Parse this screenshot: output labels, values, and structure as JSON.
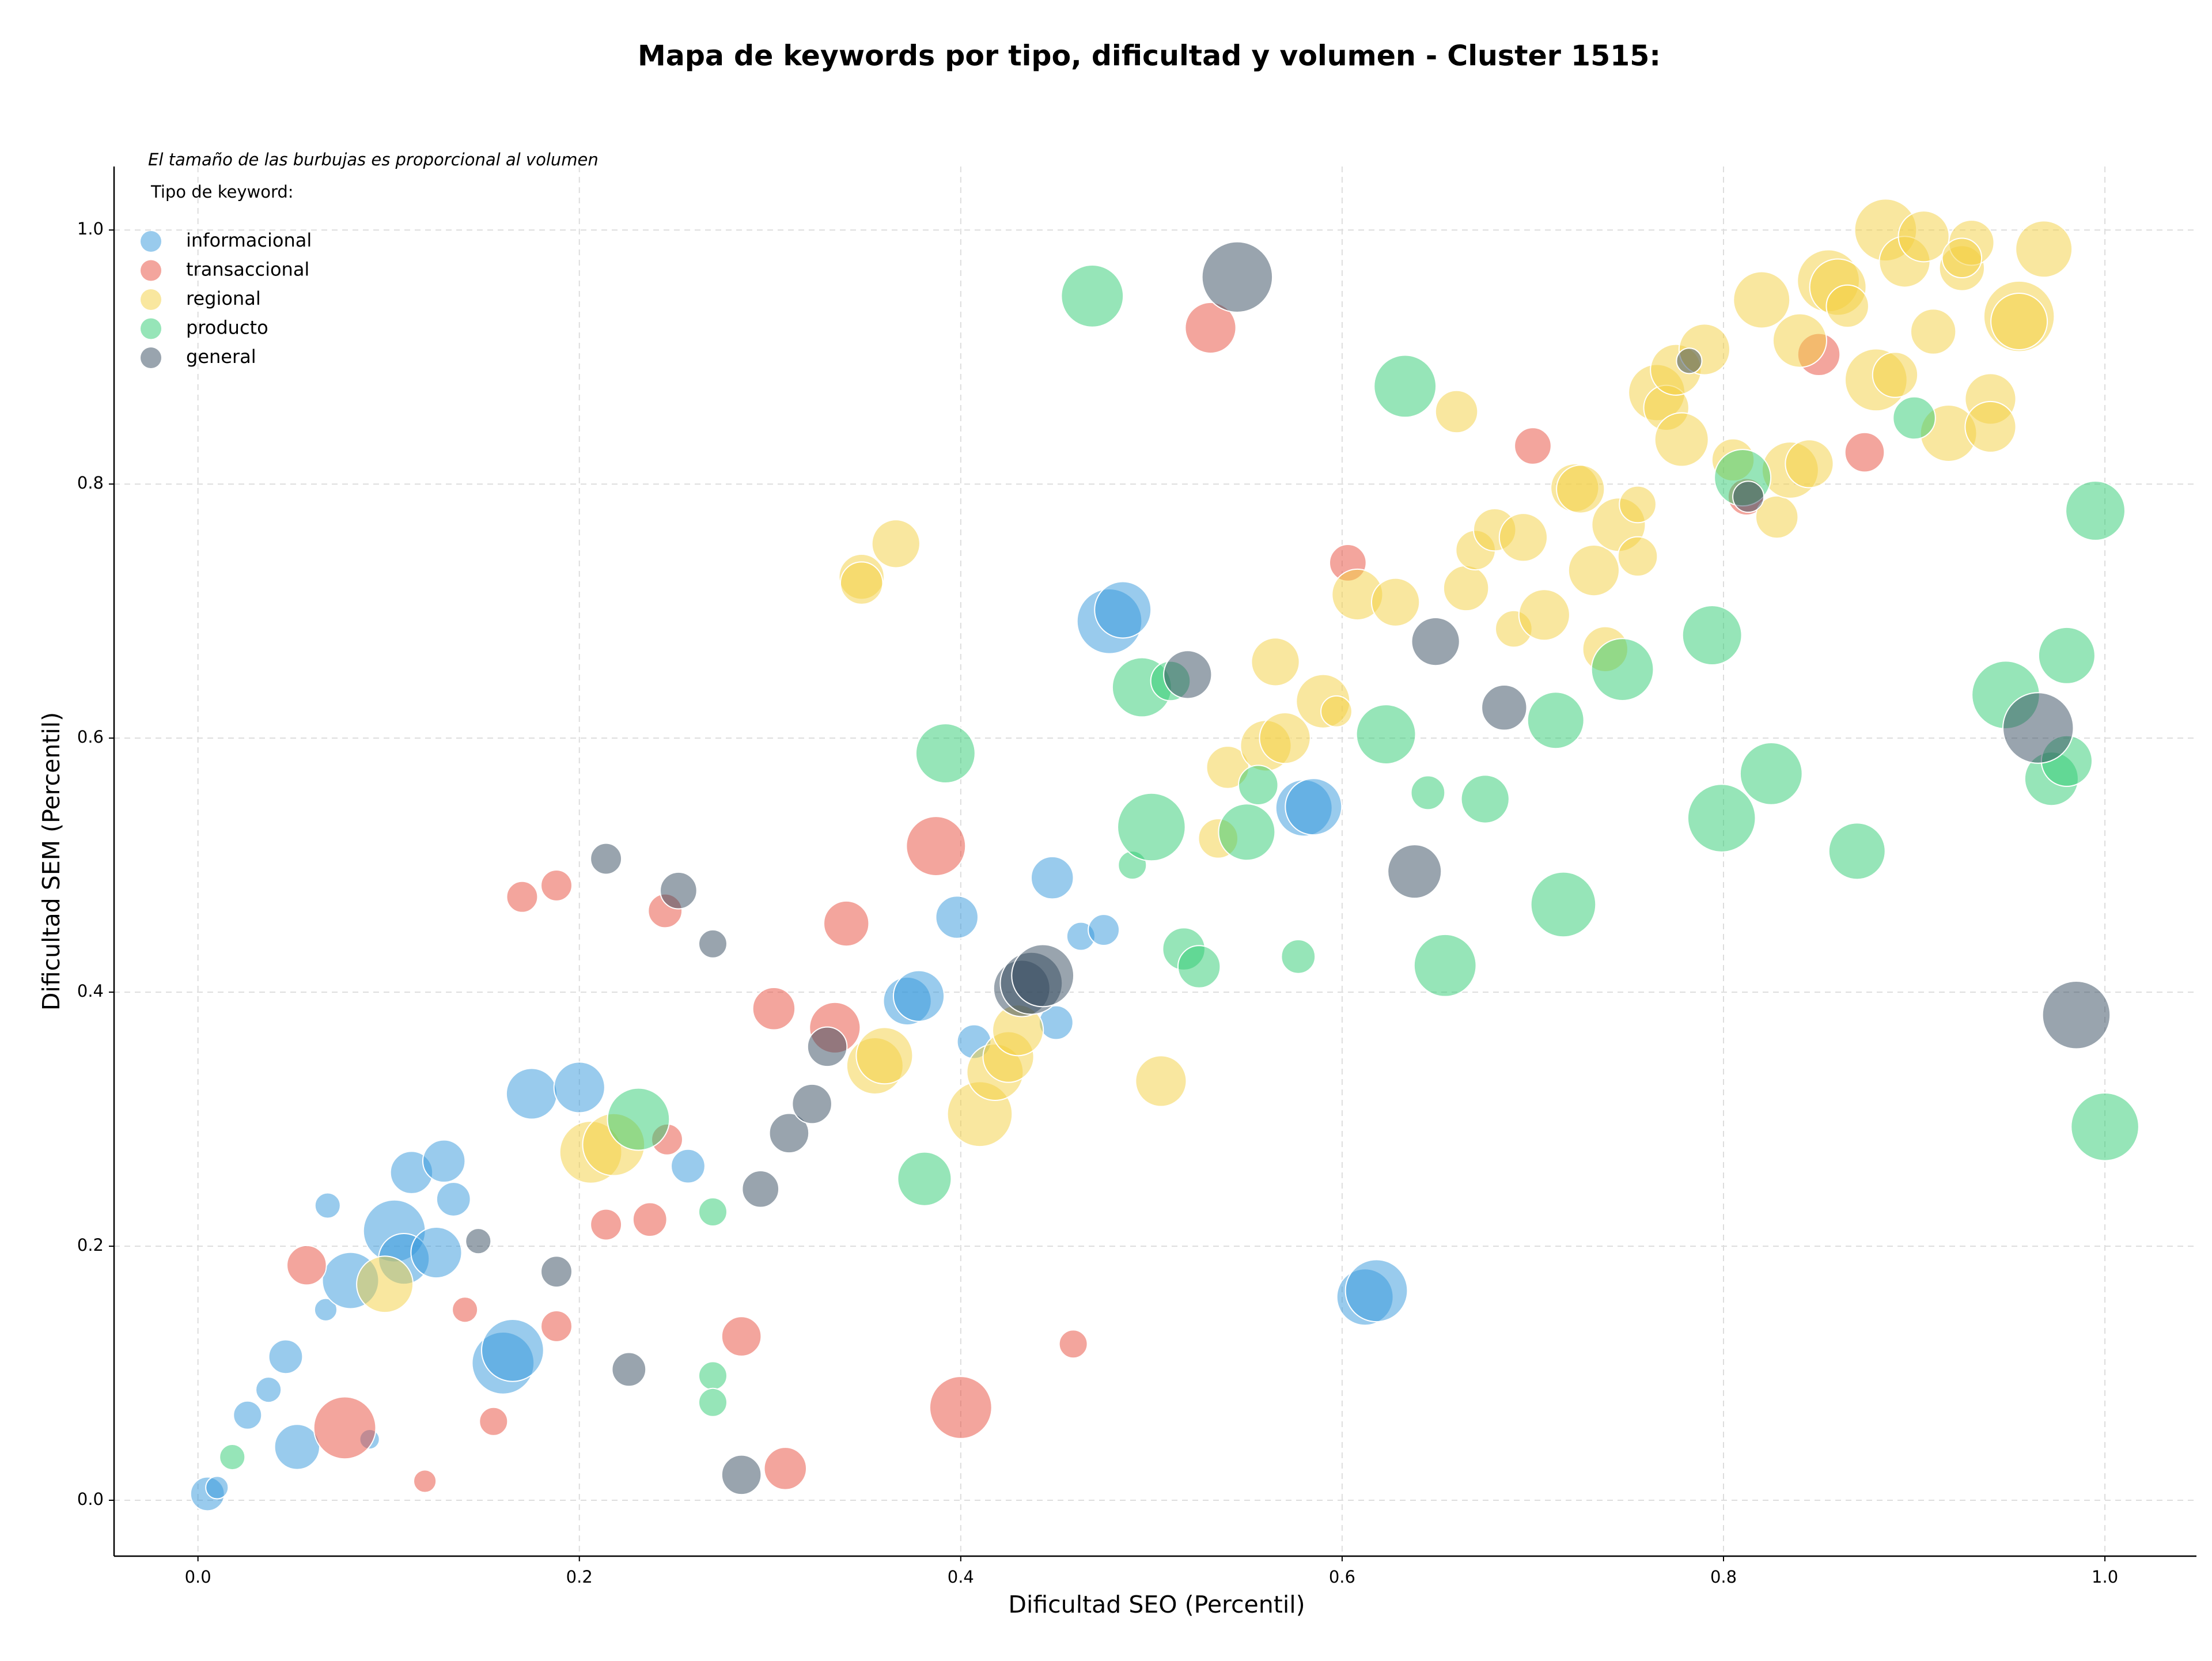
{
  "chart_data": {
    "type": "scatter",
    "title": "Mapa de keywords por tipo, dificultad y volumen - Cluster 1515:",
    "subtitle": "El tamaño de las burbujas es proporcional al volumen",
    "legend_title": "Tipo de keyword:",
    "x_label": "Dificultad SEO (Percentil)",
    "y_label": "Dificultad SEM (Percentil)",
    "xlim": [
      -0.044,
      1.048
    ],
    "ylim": [
      -0.044,
      1.05
    ],
    "xticks": [
      {
        "value": 0,
        "label": "0.0"
      },
      0.2,
      0.4,
      0.6,
      0.8,
      {
        "value": 1,
        "label": "1.0"
      }
    ],
    "yticks": [
      {
        "value": 0,
        "label": "0.0"
      },
      0.2,
      0.4,
      0.6,
      0.8,
      {
        "value": 1,
        "label": "1.0"
      }
    ],
    "grid": true,
    "legend": "upper left",
    "alpha": 0.5,
    "series": [
      {
        "name": "informacional",
        "color": "#3498DB",
        "x": [
          0.005,
          0.01,
          0.026,
          0.037,
          0.052,
          0.046,
          0.068,
          0.067,
          0.08,
          0.103,
          0.108,
          0.112,
          0.125,
          0.129,
          0.134,
          0.16,
          0.165,
          0.175,
          0.2,
          0.09,
          0.257,
          0.372,
          0.378,
          0.398,
          0.407,
          0.45,
          0.448,
          0.463,
          0.475,
          0.478,
          0.485,
          0.58,
          0.585,
          0.612,
          0.618
        ],
        "values": [
          0.005,
          0.01,
          0.067,
          0.087,
          0.042,
          0.113,
          0.232,
          0.15,
          0.173,
          0.212,
          0.19,
          0.258,
          0.195,
          0.267,
          0.237,
          0.108,
          0.118,
          0.32,
          0.325,
          0.048,
          0.263,
          0.393,
          0.397,
          0.459,
          0.361,
          0.376,
          0.49,
          0.444,
          0.449,
          0.692,
          0.701,
          0.545,
          0.546,
          0.16,
          0.165
        ],
        "sizes": [
          12,
          8,
          10,
          9,
          16,
          12,
          9,
          8,
          20,
          22,
          18,
          15,
          18,
          15,
          12,
          22,
          22,
          18,
          18,
          7,
          12,
          17,
          18,
          15,
          12,
          12,
          15,
          10,
          11,
          23,
          20,
          20,
          20,
          20,
          22
        ]
      },
      {
        "name": "transaccional",
        "color": "#E74C3C",
        "x": [
          0.057,
          0.077,
          0.119,
          0.14,
          0.155,
          0.17,
          0.188,
          0.188,
          0.214,
          0.237,
          0.245,
          0.246,
          0.285,
          0.302,
          0.308,
          0.334,
          0.34,
          0.387,
          0.4,
          0.459,
          0.531,
          0.603,
          0.7,
          0.812,
          0.85,
          0.874
        ],
        "values": [
          0.185,
          0.057,
          0.015,
          0.15,
          0.062,
          0.475,
          0.484,
          0.137,
          0.217,
          0.221,
          0.464,
          0.284,
          0.129,
          0.387,
          0.025,
          0.372,
          0.454,
          0.515,
          0.073,
          0.123,
          0.923,
          0.738,
          0.83,
          0.79,
          0.902,
          0.825
        ],
        "sizes": [
          14,
          22,
          8,
          9,
          10,
          11,
          11,
          11,
          11,
          12,
          12,
          11,
          14,
          15,
          15,
          18,
          16,
          21,
          22,
          10,
          18,
          13,
          13,
          13,
          15,
          14
        ]
      },
      {
        "name": "regional",
        "color": "#F4D03F",
        "x": [
          0.098,
          0.206,
          0.218,
          0.348,
          0.348,
          0.366,
          0.355,
          0.36,
          0.41,
          0.418,
          0.425,
          0.43,
          0.505,
          0.535,
          0.54,
          0.56,
          0.565,
          0.57,
          0.59,
          0.597,
          0.608,
          0.628,
          0.66,
          0.665,
          0.67,
          0.68,
          0.69,
          0.695,
          0.706,
          0.722,
          0.725,
          0.732,
          0.738,
          0.745,
          0.755,
          0.755,
          0.765,
          0.77,
          0.775,
          0.778,
          0.79,
          0.805,
          0.82,
          0.828,
          0.835,
          0.84,
          0.845,
          0.855,
          0.86,
          0.865,
          0.88,
          0.885,
          0.89,
          0.895,
          0.905,
          0.91,
          0.918,
          0.925,
          0.93,
          0.94,
          0.94,
          0.955,
          0.955,
          0.968,
          0.925
        ],
        "values": [
          0.17,
          0.274,
          0.28,
          0.727,
          0.722,
          0.753,
          0.342,
          0.35,
          0.304,
          0.337,
          0.349,
          0.37,
          0.33,
          0.521,
          0.577,
          0.594,
          0.66,
          0.6,
          0.629,
          0.621,
          0.713,
          0.707,
          0.857,
          0.718,
          0.748,
          0.764,
          0.686,
          0.758,
          0.697,
          0.797,
          0.796,
          0.732,
          0.67,
          0.768,
          0.784,
          0.743,
          0.872,
          0.86,
          0.89,
          0.835,
          0.906,
          0.819,
          0.945,
          0.774,
          0.811,
          0.913,
          0.816,
          0.96,
          0.955,
          0.94,
          0.882,
          1.0,
          0.886,
          0.975,
          0.995,
          0.92,
          0.84,
          0.97,
          0.99,
          0.867,
          0.845,
          0.932,
          0.928,
          0.985,
          0.978
        ],
        "sizes": [
          20,
          22,
          22,
          16,
          15,
          17,
          20,
          20,
          23,
          20,
          18,
          18,
          18,
          14,
          15,
          18,
          17,
          18,
          19,
          11,
          18,
          17,
          15,
          16,
          14,
          15,
          13,
          17,
          18,
          17,
          17,
          18,
          16,
          19,
          13,
          14,
          20,
          16,
          18,
          19,
          18,
          15,
          20,
          15,
          20,
          19,
          17,
          22,
          20,
          15,
          22,
          22,
          16,
          18,
          18,
          16,
          20,
          16,
          16,
          18,
          18,
          25,
          20,
          20,
          14
        ]
      },
      {
        "name": "producto",
        "color": "#2ECC71",
        "x": [
          0.018,
          0.27,
          0.27,
          0.27,
          0.231,
          0.381,
          0.392,
          0.469,
          0.49,
          0.495,
          0.5,
          0.51,
          0.517,
          0.525,
          0.55,
          0.556,
          0.577,
          0.623,
          0.633,
          0.645,
          0.654,
          0.675,
          0.712,
          0.716,
          0.747,
          0.794,
          0.799,
          0.81,
          0.825,
          0.87,
          0.9,
          0.948,
          0.972,
          0.98,
          0.98,
          0.995,
          1.0
        ],
        "values": [
          0.034,
          0.227,
          0.098,
          0.077,
          0.3,
          0.253,
          0.588,
          0.948,
          0.5,
          0.64,
          0.53,
          0.645,
          0.434,
          0.42,
          0.526,
          0.563,
          0.428,
          0.603,
          0.877,
          0.557,
          0.421,
          0.552,
          0.614,
          0.469,
          0.654,
          0.681,
          0.537,
          0.805,
          0.572,
          0.511,
          0.852,
          0.634,
          0.568,
          0.582,
          0.665,
          0.779,
          0.294
        ],
        "sizes": [
          9,
          10,
          10,
          10,
          22,
          19,
          21,
          22,
          10,
          21,
          24,
          14,
          15,
          15,
          20,
          14,
          12,
          21,
          22,
          12,
          22,
          17,
          20,
          23,
          22,
          21,
          24,
          20,
          22,
          20,
          15,
          24,
          19,
          18,
          20,
          21,
          24
        ]
      },
      {
        "name": "general",
        "color": "#34495E",
        "x": [
          0.147,
          0.188,
          0.214,
          0.226,
          0.252,
          0.27,
          0.285,
          0.295,
          0.31,
          0.322,
          0.33,
          0.432,
          0.437,
          0.443,
          0.519,
          0.545,
          0.638,
          0.649,
          0.685,
          0.782,
          0.813,
          0.965,
          0.985
        ],
        "values": [
          0.204,
          0.18,
          0.505,
          0.103,
          0.48,
          0.438,
          0.02,
          0.245,
          0.289,
          0.312,
          0.357,
          0.403,
          0.407,
          0.413,
          0.65,
          0.963,
          0.495,
          0.676,
          0.624,
          0.897,
          0.79,
          0.608,
          0.382
        ],
        "sizes": [
          9,
          11,
          11,
          12,
          13,
          10,
          14,
          13,
          14,
          14,
          14,
          20,
          22,
          22,
          17,
          25,
          19,
          17,
          16,
          9,
          11,
          25,
          24
        ]
      }
    ]
  }
}
